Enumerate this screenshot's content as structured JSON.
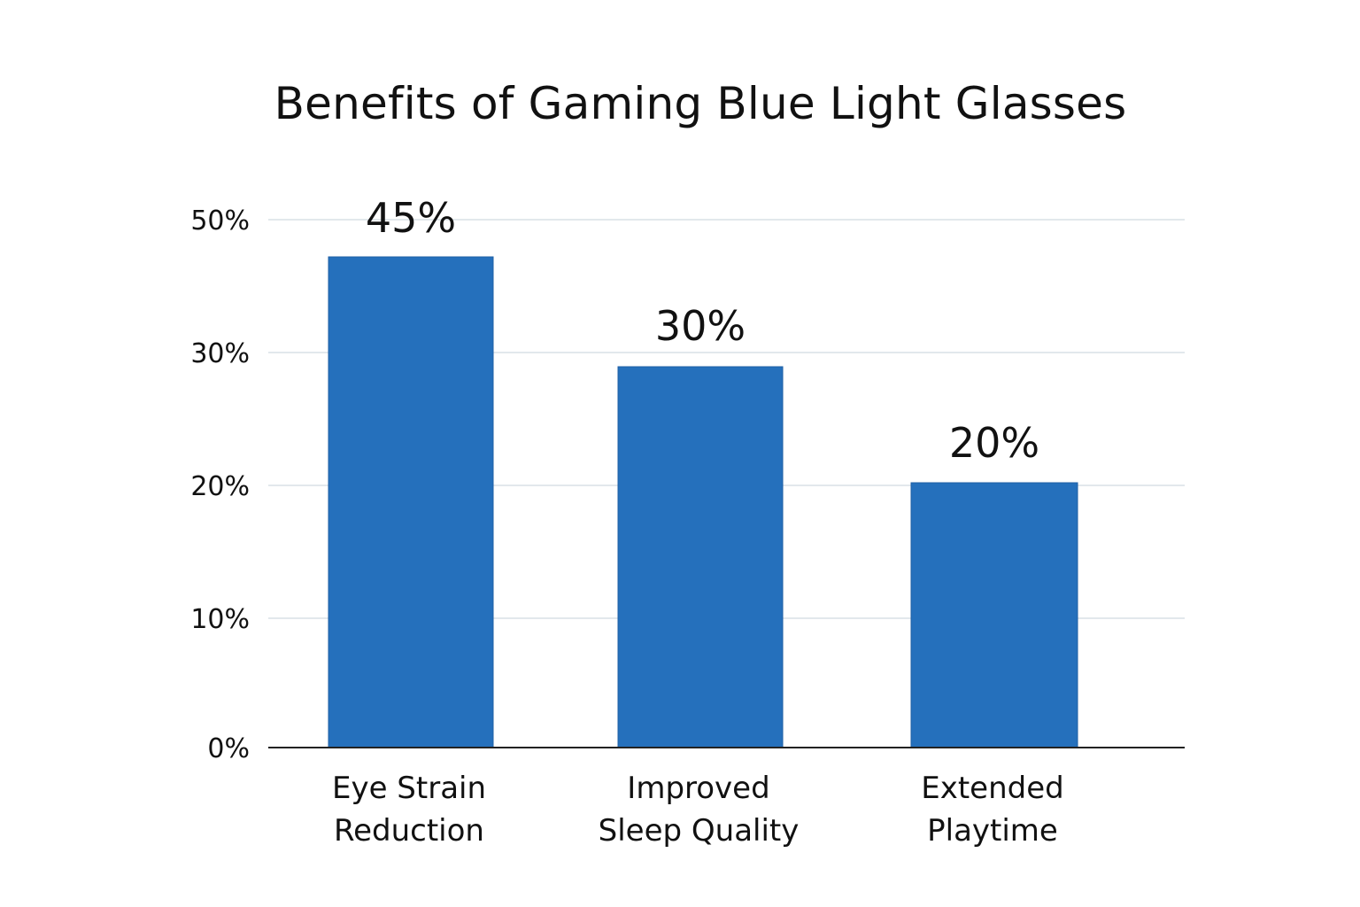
{
  "chart_data": {
    "type": "bar",
    "title": "Benefits of Gaming Blue Light Glasses",
    "xlabel": "",
    "ylabel": "",
    "categories": [
      [
        "Eye Strain",
        "Reduction"
      ],
      [
        "Improved",
        "Sleep Quality"
      ],
      [
        "Extended",
        "Playtime"
      ]
    ],
    "values": [
      45,
      30,
      20
    ],
    "value_labels": [
      "45%",
      "30%",
      "20%"
    ],
    "y_ticks": [
      {
        "value": 0,
        "label": "0%"
      },
      {
        "value": 10,
        "label": "10%"
      },
      {
        "value": 20,
        "label": "20%"
      },
      {
        "value": 30,
        "label": "30%"
      },
      {
        "value": 50,
        "label": "50%"
      }
    ],
    "grid": true,
    "legend": "none",
    "colors": {
      "bar": "#2570BC",
      "grid": "#D9E0E6",
      "axis": "#222222",
      "text": "#111111"
    }
  }
}
